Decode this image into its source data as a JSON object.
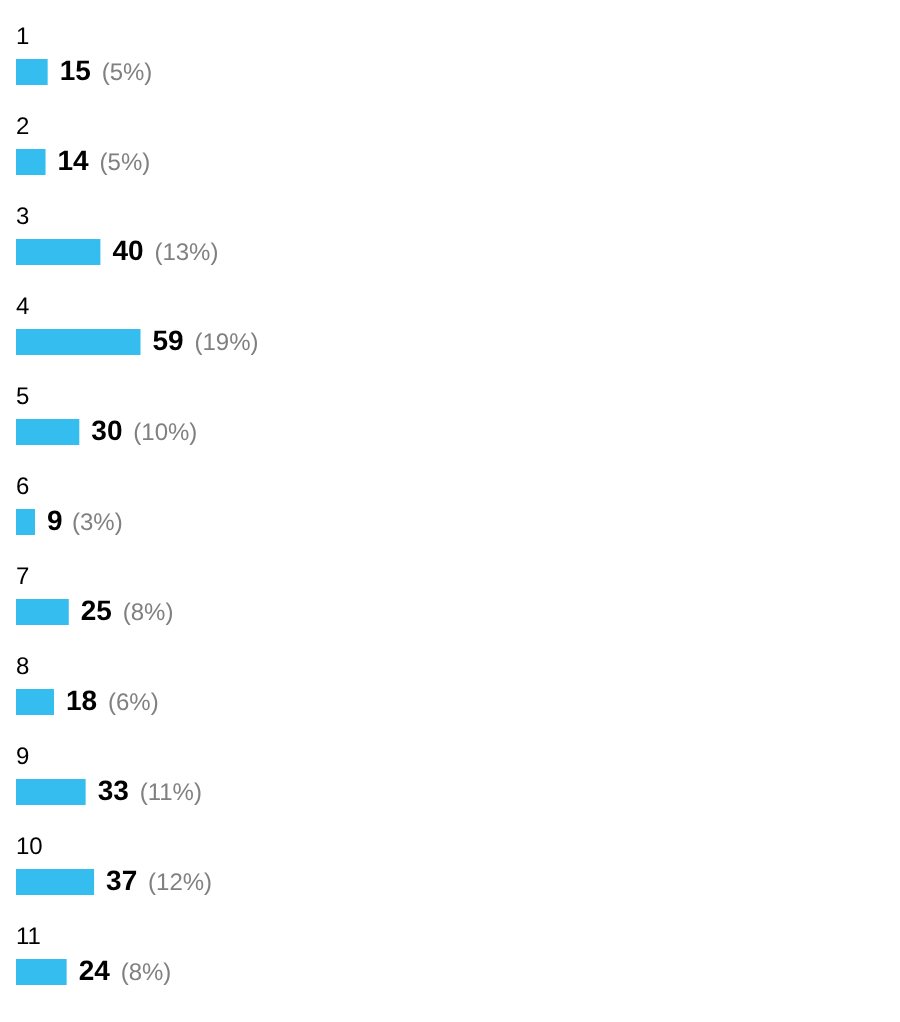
{
  "chart_data": {
    "type": "bar",
    "orientation": "horizontal",
    "categories": [
      "1",
      "2",
      "3",
      "4",
      "5",
      "6",
      "7",
      "8",
      "9",
      "10",
      "11"
    ],
    "data_labels": true,
    "series": [
      {
        "color": "#35bdf0",
        "values": [
          15,
          14,
          40,
          59,
          30,
          9,
          25,
          18,
          33,
          37,
          24
        ]
      }
    ],
    "annotations": [
      {
        "text": "(5%)",
        "x": 15,
        "y": "1"
      },
      {
        "text": "(5%)",
        "x": 14,
        "y": "2"
      },
      {
        "text": "(13%)",
        "x": 40,
        "y": "3"
      },
      {
        "text": "(19%)",
        "x": 59,
        "y": "4"
      },
      {
        "text": "(10%)",
        "x": 30,
        "y": "5"
      },
      {
        "text": "(3%)",
        "x": 9,
        "y": "6"
      },
      {
        "text": "(8%)",
        "x": 25,
        "y": "7"
      },
      {
        "text": "(6%)",
        "x": 18,
        "y": "8"
      },
      {
        "text": "(11%)",
        "x": 33,
        "y": "9"
      },
      {
        "text": "(12%)",
        "x": 37,
        "y": "10"
      },
      {
        "text": "(8%)",
        "x": 24,
        "y": "11"
      }
    ]
  }
}
